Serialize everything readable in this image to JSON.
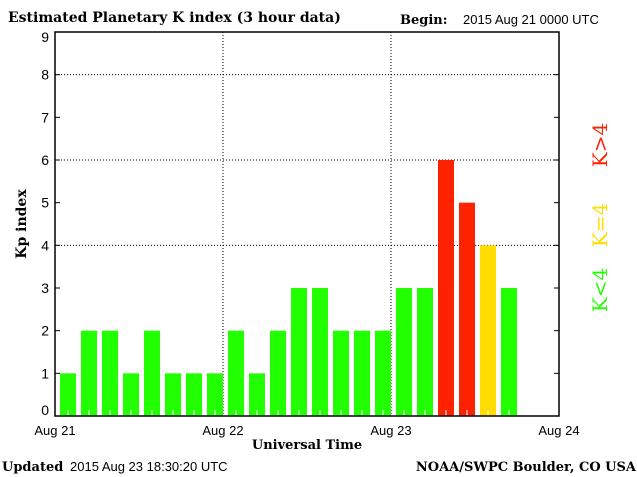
{
  "chart_data": {
    "type": "bar",
    "title": "Estimated Planetary K index (3 hour data)",
    "begin_label": "Begin:",
    "begin_value": "2015 Aug 21 0000 UTC",
    "xlabel": "Universal Time",
    "ylabel": "Kp index",
    "ylim": [
      0,
      9
    ],
    "yticks": [
      "0",
      "1",
      "2",
      "3",
      "4",
      "5",
      "6",
      "7",
      "8",
      "9"
    ],
    "xticks": [
      "Aug 21",
      "Aug 22",
      "Aug 23",
      "Aug 24"
    ],
    "grid_y": [
      4,
      6,
      8
    ],
    "bars_per_day": 8,
    "values": [
      1,
      2,
      2,
      1,
      2,
      1,
      1,
      1,
      2,
      1,
      2,
      3,
      3,
      2,
      2,
      2,
      3,
      3,
      6,
      5,
      4,
      3
    ],
    "legend": [
      {
        "label": "K>4",
        "color": "#ff2200"
      },
      {
        "label": "K=4",
        "color": "#ffdd00"
      },
      {
        "label": "K<4",
        "color": "#22ff00"
      }
    ]
  },
  "footer": {
    "updated_label": "Updated",
    "updated_value": "2015 Aug 23 18:30:20 UTC",
    "source": "NOAA/SWPC Boulder, CO USA"
  }
}
